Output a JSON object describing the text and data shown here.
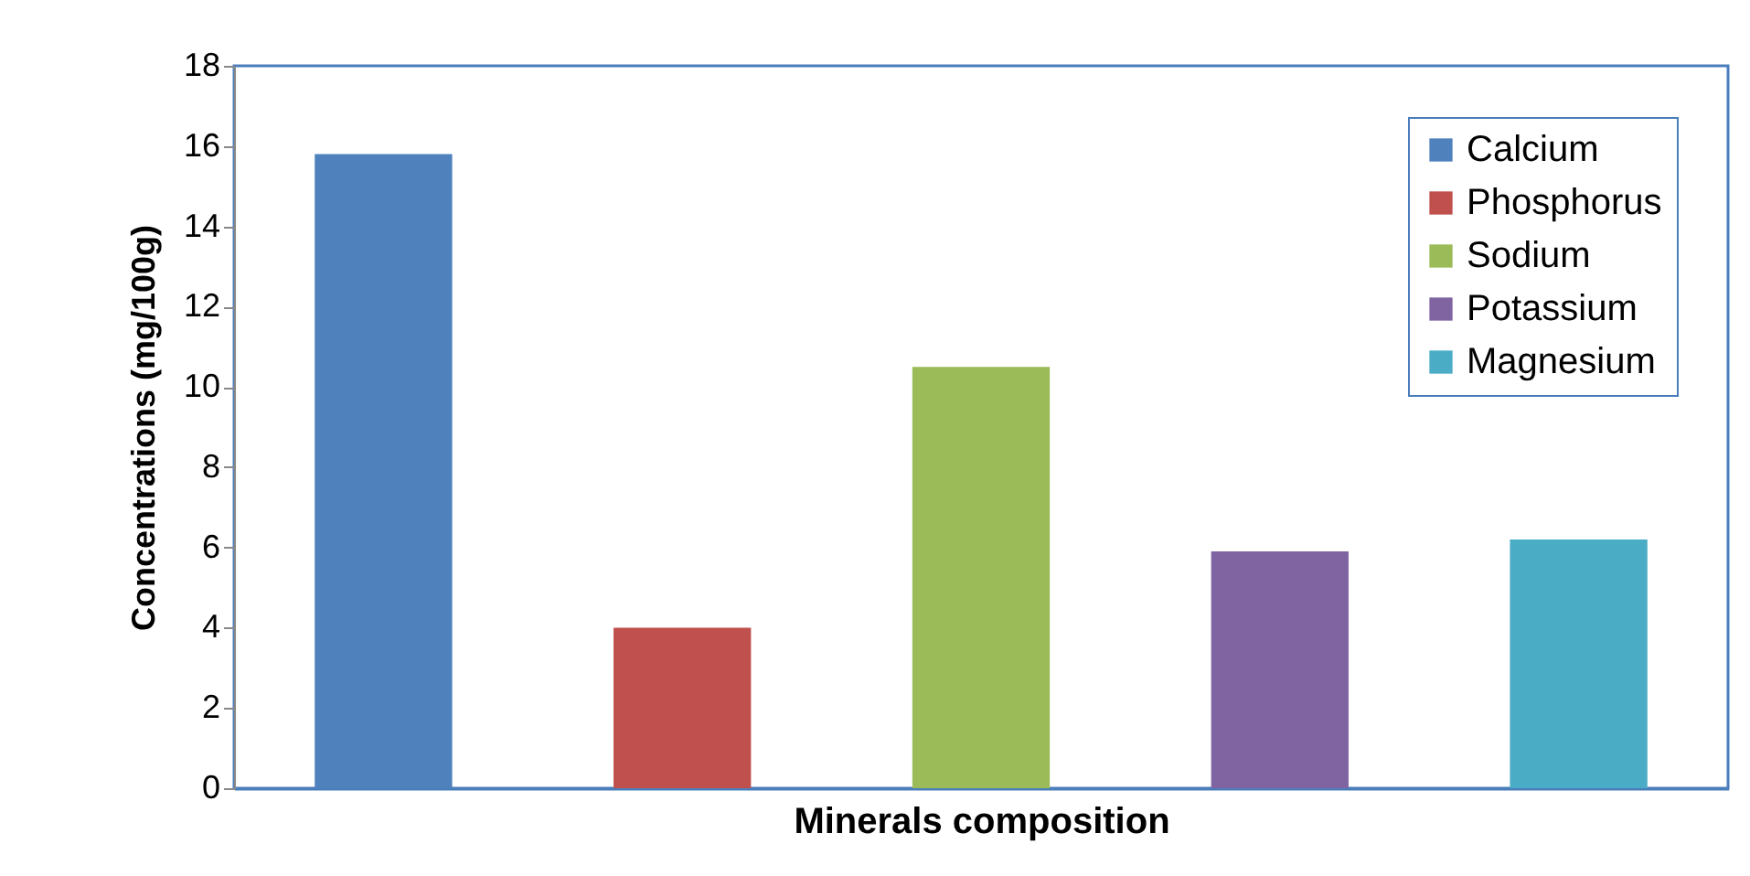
{
  "chart_data": {
    "type": "bar",
    "xlabel": "Minerals composition",
    "ylabel": "Concentrations (mg/100g)",
    "categories": [
      null,
      null,
      null,
      null,
      null
    ],
    "series": [
      {
        "name": "Calcium",
        "color": "#4f81bd",
        "values": [
          15.8,
          null,
          null,
          null,
          null
        ]
      },
      {
        "name": "Phosphorus",
        "color": "#c0504d",
        "values": [
          null,
          4.0,
          null,
          null,
          null
        ]
      },
      {
        "name": "Sodium",
        "color": "#9bbb59",
        "values": [
          null,
          null,
          10.5,
          null,
          null
        ]
      },
      {
        "name": "Potassium",
        "color": "#8064a2",
        "values": [
          null,
          null,
          null,
          5.9,
          null
        ]
      },
      {
        "name": "Magnesium",
        "color": "#4bacc6",
        "values": [
          null,
          null,
          null,
          null,
          6.2
        ]
      }
    ],
    "ylim": [
      0,
      18
    ],
    "yticks": [
      0,
      2,
      4,
      6,
      8,
      10,
      12,
      14,
      16,
      18
    ],
    "grid": false,
    "legend": "top right",
    "tick_labels": "y"
  }
}
